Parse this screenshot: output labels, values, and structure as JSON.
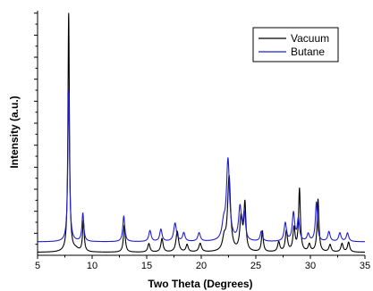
{
  "chart_data": {
    "type": "line",
    "title": "",
    "xlabel": "Two Theta (Degrees)",
    "ylabel": "Intensity (a.u.)",
    "xlim": [
      5,
      35
    ],
    "ylim": [
      0,
      1
    ],
    "xticks": [
      "5",
      "10",
      "15",
      "20",
      "25",
      "30",
      "35"
    ],
    "y_tick_labels": false,
    "grid": false,
    "legend": "top-right",
    "series": [
      {
        "name": "Vacuum",
        "color": "#000000",
        "baseline": 0.012,
        "peaks": [
          {
            "x": 7.85,
            "h": 0.975,
            "w": 0.08
          },
          {
            "x": 8.5,
            "h": 0.01,
            "w": 0.3
          },
          {
            "x": 9.2,
            "h": 0.125,
            "w": 0.09
          },
          {
            "x": 12.95,
            "h": 0.11,
            "w": 0.1
          },
          {
            "x": 15.2,
            "h": 0.035,
            "w": 0.12
          },
          {
            "x": 16.4,
            "h": 0.055,
            "w": 0.12
          },
          {
            "x": 17.8,
            "h": 0.085,
            "w": 0.14
          },
          {
            "x": 18.7,
            "h": 0.03,
            "w": 0.12
          },
          {
            "x": 19.9,
            "h": 0.035,
            "w": 0.14
          },
          {
            "x": 22.1,
            "h": 0.05,
            "w": 0.18
          },
          {
            "x": 22.55,
            "h": 0.305,
            "w": 0.16
          },
          {
            "x": 23.65,
            "h": 0.135,
            "w": 0.14
          },
          {
            "x": 24.0,
            "h": 0.19,
            "w": 0.11
          },
          {
            "x": 25.6,
            "h": 0.085,
            "w": 0.1
          },
          {
            "x": 27.1,
            "h": 0.04,
            "w": 0.12
          },
          {
            "x": 27.8,
            "h": 0.085,
            "w": 0.12
          },
          {
            "x": 28.5,
            "h": 0.095,
            "w": 0.12
          },
          {
            "x": 29.0,
            "h": 0.255,
            "w": 0.1
          },
          {
            "x": 29.9,
            "h": 0.03,
            "w": 0.12
          },
          {
            "x": 30.7,
            "h": 0.215,
            "w": 0.1
          },
          {
            "x": 31.8,
            "h": 0.03,
            "w": 0.12
          },
          {
            "x": 32.9,
            "h": 0.035,
            "w": 0.12
          },
          {
            "x": 33.5,
            "h": 0.04,
            "w": 0.12
          }
        ]
      },
      {
        "name": "Butane",
        "color": "#1f1fd0",
        "baseline": 0.055,
        "peaks": [
          {
            "x": 7.85,
            "h": 0.62,
            "w": 0.09
          },
          {
            "x": 9.15,
            "h": 0.115,
            "w": 0.1
          },
          {
            "x": 12.9,
            "h": 0.105,
            "w": 0.11
          },
          {
            "x": 15.3,
            "h": 0.045,
            "w": 0.13
          },
          {
            "x": 16.3,
            "h": 0.05,
            "w": 0.13
          },
          {
            "x": 17.6,
            "h": 0.075,
            "w": 0.15
          },
          {
            "x": 18.4,
            "h": 0.035,
            "w": 0.13
          },
          {
            "x": 19.8,
            "h": 0.035,
            "w": 0.14
          },
          {
            "x": 22.05,
            "h": 0.06,
            "w": 0.18
          },
          {
            "x": 22.45,
            "h": 0.33,
            "w": 0.17
          },
          {
            "x": 23.55,
            "h": 0.135,
            "w": 0.15
          },
          {
            "x": 23.95,
            "h": 0.11,
            "w": 0.12
          },
          {
            "x": 25.5,
            "h": 0.04,
            "w": 0.12
          },
          {
            "x": 27.7,
            "h": 0.075,
            "w": 0.13
          },
          {
            "x": 28.45,
            "h": 0.115,
            "w": 0.13
          },
          {
            "x": 28.9,
            "h": 0.09,
            "w": 0.12
          },
          {
            "x": 29.8,
            "h": 0.03,
            "w": 0.13
          },
          {
            "x": 30.55,
            "h": 0.16,
            "w": 0.11
          },
          {
            "x": 31.7,
            "h": 0.04,
            "w": 0.13
          },
          {
            "x": 32.7,
            "h": 0.035,
            "w": 0.13
          },
          {
            "x": 33.4,
            "h": 0.035,
            "w": 0.13
          }
        ]
      }
    ]
  }
}
